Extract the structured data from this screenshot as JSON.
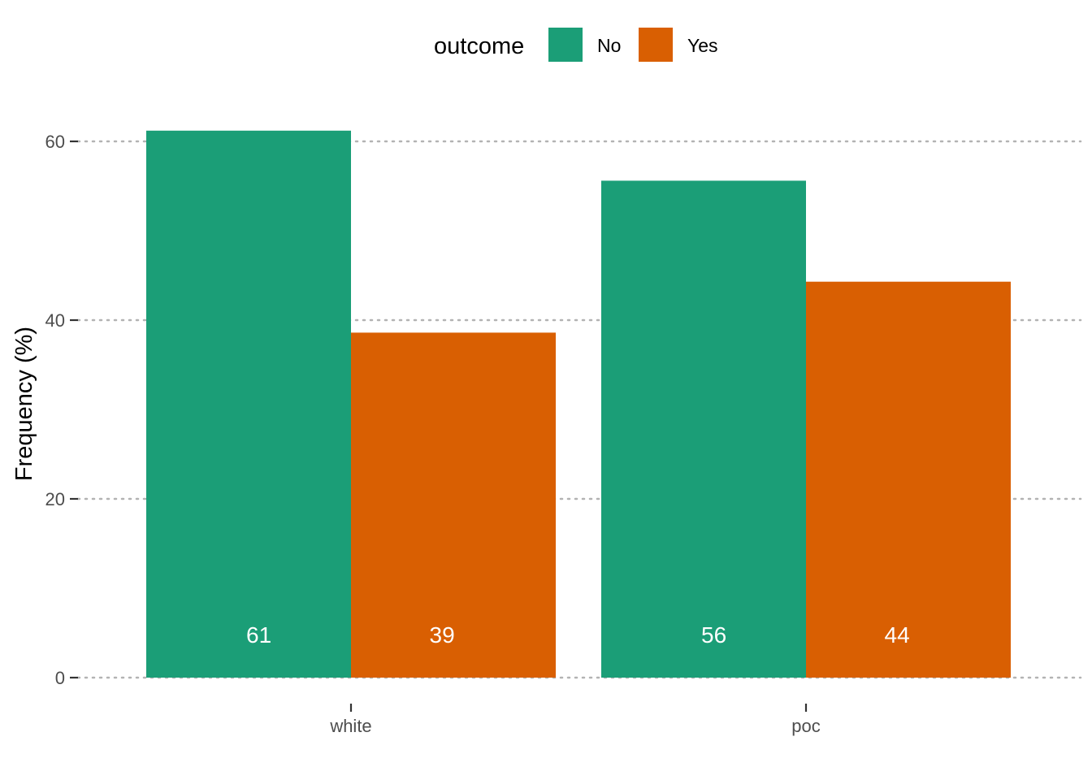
{
  "chart_data": {
    "type": "bar",
    "categories": [
      "white",
      "poc"
    ],
    "series": [
      {
        "name": "No",
        "values": [
          61.2,
          55.6
        ],
        "labels": [
          "61",
          "56"
        ]
      },
      {
        "name": "Yes",
        "values": [
          38.6,
          44.3
        ],
        "labels": [
          "39",
          "44"
        ]
      }
    ],
    "title": "",
    "xlabel": "",
    "ylabel": "Frequency (%)",
    "ylim": [
      0,
      64
    ],
    "yticks": [
      "0",
      "20",
      "40",
      "60"
    ],
    "grid": "horizontal dotted",
    "legend": {
      "title": "outcome",
      "position": "top"
    }
  },
  "colors": {
    "No": "#1b9e77",
    "Yes": "#d95f02",
    "grid": "#b3b3b3",
    "tick": "#333333"
  }
}
